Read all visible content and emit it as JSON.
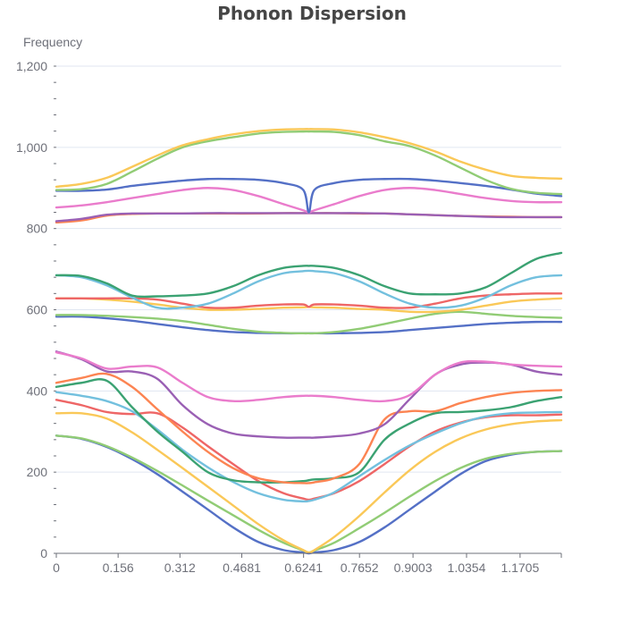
{
  "chart_data": {
    "type": "line",
    "title": "Phonon Dispersion",
    "xlabel": "",
    "ylabel": "Frequency",
    "ylim": [
      0,
      1200
    ],
    "xlim": [
      0,
      1.2746
    ],
    "y_ticks": [
      0,
      200,
      400,
      600,
      800,
      1000,
      1200
    ],
    "y_tick_labels": [
      "0",
      "200",
      "400",
      "600",
      "800",
      "1,000",
      "1,200"
    ],
    "x_ticks": [
      0,
      0.156,
      0.312,
      0.4681,
      0.6241,
      0.7652,
      0.9003,
      1.0354,
      1.1705
    ],
    "x_tick_labels": [
      "0",
      "0.156",
      "0.312",
      "0.4681",
      "0.6241",
      "0.7652",
      "0.9003",
      "1.0354",
      "1.1705"
    ],
    "grid": true,
    "legend": "none",
    "x": [
      0,
      0.0637,
      0.1274,
      0.1912,
      0.2549,
      0.3186,
      0.3824,
      0.4461,
      0.5098,
      0.5736,
      0.6233,
      0.6373,
      0.6513,
      0.701,
      0.7648,
      0.8285,
      0.8922,
      0.956,
      1.0197,
      1.0834,
      1.1472,
      1.2109,
      1.2746
    ],
    "series": [
      {
        "color": "#5470c6",
        "values": [
          290,
          282,
          262,
          232,
          195,
          152,
          108,
          64,
          28,
          8,
          2,
          0,
          2,
          8,
          28,
          64,
          108,
          152,
          195,
          227,
          243,
          250,
          252
        ]
      },
      {
        "color": "#91cc75",
        "values": [
          290,
          283,
          264,
          236,
          203,
          167,
          130,
          94,
          58,
          26,
          7,
          2,
          7,
          26,
          62,
          100,
          140,
          178,
          210,
          233,
          245,
          250,
          252
        ]
      },
      {
        "color": "#fac858",
        "values": [
          345,
          345,
          332,
          298,
          255,
          210,
          164,
          118,
          72,
          32,
          8,
          2,
          8,
          40,
          92,
          150,
          205,
          250,
          283,
          305,
          318,
          325,
          328
        ]
      },
      {
        "color": "#ee6666",
        "values": [
          378,
          365,
          348,
          343,
          345,
          310,
          264,
          220,
          178,
          148,
          135,
          132,
          135,
          148,
          178,
          220,
          264,
          300,
          322,
          335,
          340,
          340,
          342
        ]
      },
      {
        "color": "#73c0de",
        "values": [
          397,
          388,
          375,
          350,
          305,
          255,
          212,
          176,
          148,
          132,
          128,
          129,
          132,
          150,
          190,
          230,
          266,
          295,
          320,
          337,
          345,
          347,
          348
        ]
      },
      {
        "color": "#3ba272",
        "values": [
          410,
          420,
          425,
          360,
          300,
          250,
          200,
          180,
          175,
          175,
          178,
          180,
          182,
          185,
          200,
          280,
          320,
          345,
          348,
          352,
          360,
          375,
          385
        ]
      },
      {
        "color": "#fc8452",
        "values": [
          420,
          432,
          442,
          410,
          355,
          300,
          250,
          210,
          185,
          175,
          173,
          173,
          175,
          185,
          220,
          330,
          350,
          350,
          370,
          385,
          395,
          400,
          402
        ]
      },
      {
        "color": "#9a60b4",
        "values": [
          497,
          478,
          448,
          448,
          430,
          365,
          318,
          295,
          288,
          285,
          285,
          285,
          285,
          288,
          295,
          318,
          380,
          440,
          465,
          470,
          465,
          448,
          440
        ]
      },
      {
        "color": "#ea7ccc",
        "values": [
          495,
          480,
          455,
          460,
          458,
          420,
          385,
          375,
          378,
          385,
          388,
          388,
          388,
          385,
          378,
          375,
          390,
          440,
          470,
          472,
          465,
          462,
          460
        ]
      },
      {
        "color": "#5470c6",
        "values": [
          583,
          583,
          579,
          573,
          565,
          557,
          550,
          545,
          543,
          542,
          542,
          542,
          542,
          542,
          543,
          545,
          550,
          555,
          560,
          565,
          568,
          570,
          570
        ]
      },
      {
        "color": "#91cc75",
        "values": [
          587,
          587,
          585,
          582,
          578,
          572,
          563,
          553,
          546,
          543,
          542,
          542,
          542,
          545,
          553,
          565,
          578,
          590,
          595,
          590,
          585,
          582,
          580
        ]
      },
      {
        "color": "#fac858",
        "values": [
          628,
          628,
          625,
          620,
          613,
          605,
          600,
          600,
          602,
          605,
          606,
          607,
          606,
          605,
          602,
          600,
          595,
          595,
          600,
          610,
          620,
          625,
          628
        ]
      },
      {
        "color": "#ee6666",
        "values": [
          628,
          628,
          628,
          628,
          625,
          615,
          605,
          605,
          610,
          613,
          613,
          607,
          613,
          613,
          610,
          605,
          605,
          615,
          628,
          635,
          638,
          640,
          640
        ]
      },
      {
        "color": "#73c0de",
        "values": [
          685,
          680,
          660,
          630,
          605,
          605,
          615,
          640,
          670,
          690,
          695,
          696,
          695,
          690,
          670,
          640,
          615,
          605,
          610,
          630,
          660,
          680,
          685
        ]
      },
      {
        "color": "#3ba272",
        "values": [
          685,
          683,
          665,
          635,
          633,
          635,
          640,
          658,
          685,
          703,
          708,
          708,
          708,
          703,
          685,
          658,
          640,
          638,
          640,
          655,
          690,
          725,
          740
        ]
      },
      {
        "color": "#fc8452",
        "values": [
          815,
          820,
          832,
          836,
          837,
          837,
          837,
          837,
          837,
          838,
          838,
          838,
          838,
          838,
          837,
          837,
          835,
          833,
          831,
          830,
          829,
          828,
          828
        ]
      },
      {
        "color": "#9a60b4",
        "values": [
          818,
          824,
          834,
          837,
          837,
          837,
          838,
          838,
          838,
          838,
          838,
          838,
          838,
          838,
          838,
          837,
          835,
          833,
          831,
          829,
          828,
          828,
          828
        ]
      },
      {
        "color": "#ea7ccc",
        "values": [
          852,
          857,
          865,
          875,
          885,
          895,
          900,
          895,
          880,
          860,
          845,
          840,
          845,
          860,
          880,
          895,
          900,
          895,
          885,
          875,
          868,
          865,
          865
        ]
      },
      {
        "color": "#5470c6",
        "values": [
          893,
          893,
          896,
          905,
          912,
          918,
          922,
          922,
          920,
          912,
          895,
          840,
          895,
          912,
          920,
          922,
          922,
          918,
          912,
          905,
          896,
          886,
          880
        ]
      },
      {
        "color": "#91cc75",
        "values": [
          895,
          897,
          910,
          940,
          972,
          1000,
          1015,
          1025,
          1034,
          1038,
          1039,
          1039,
          1039,
          1038,
          1030,
          1015,
          1003,
          980,
          950,
          920,
          898,
          888,
          885
        ]
      },
      {
        "color": "#fac858",
        "values": [
          903,
          910,
          925,
          952,
          980,
          1005,
          1020,
          1032,
          1040,
          1044,
          1045,
          1045,
          1045,
          1044,
          1037,
          1025,
          1010,
          990,
          965,
          945,
          930,
          925,
          923
        ]
      }
    ]
  }
}
